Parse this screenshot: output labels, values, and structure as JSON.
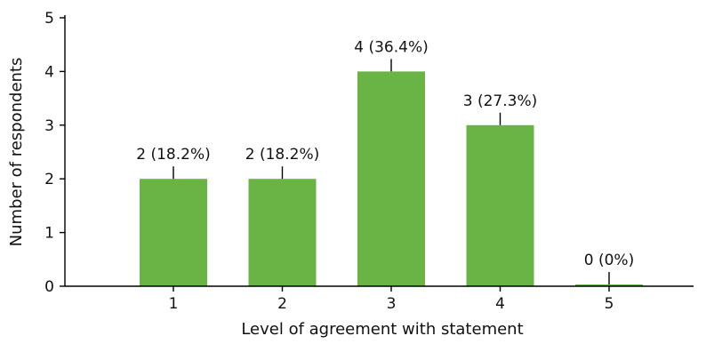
{
  "chart_data": {
    "type": "bar",
    "categories": [
      "1",
      "2",
      "3",
      "4",
      "5"
    ],
    "values": [
      2,
      2,
      4,
      3,
      0
    ],
    "data_labels": [
      "2 (18.2%)",
      "2 (18.2%)",
      "4 (36.4%)",
      "3 (27.3%)",
      "0 (0%)"
    ],
    "xlabel": "Level of agreement with statement",
    "ylabel": "Number of respondents",
    "ylim": [
      0,
      5
    ],
    "yticks": [
      "0",
      "1",
      "2",
      "3",
      "4",
      "5"
    ],
    "grid": false,
    "legend": "none",
    "bar_color": "#6ab345"
  }
}
